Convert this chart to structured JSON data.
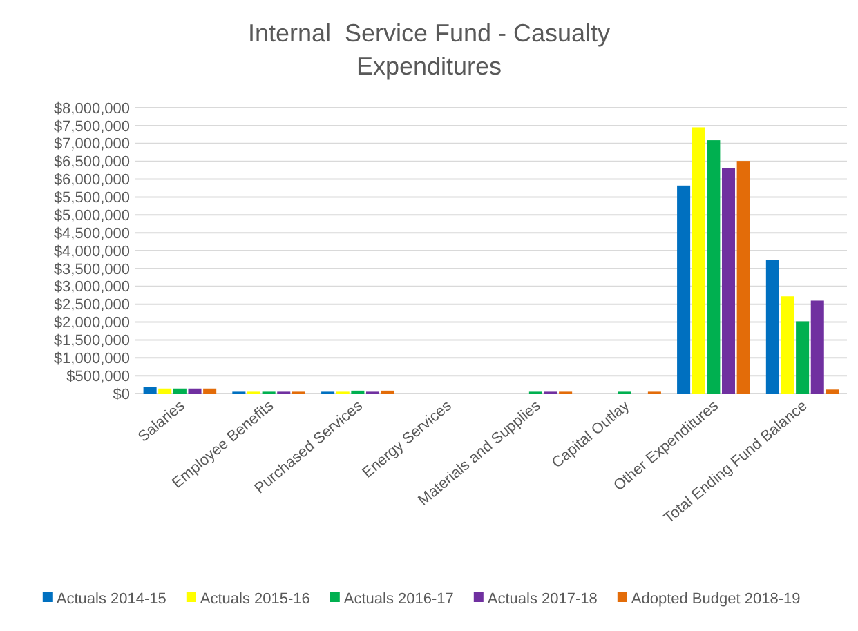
{
  "chart_data": {
    "type": "bar",
    "title": "Internal  Service Fund - Casualty Expenditures",
    "categories": [
      "Salaries",
      "Employee Benefits",
      "Purchased Services",
      "Energy Services",
      "Materials and Supplies",
      "Capital Outlay",
      "Other Expenditures",
      "Total Ending Fund Balance"
    ],
    "series": [
      {
        "name": "Actuals 2014-15",
        "color": "#0070c0",
        "values": [
          190000,
          50000,
          50000,
          0,
          0,
          0,
          5820000,
          3740000
        ]
      },
      {
        "name": "Actuals 2015-16",
        "color": "#ffff00",
        "values": [
          140000,
          50000,
          50000,
          0,
          0,
          0,
          7450000,
          2720000
        ]
      },
      {
        "name": "Actuals 2016-17",
        "color": "#00b050",
        "values": [
          140000,
          50000,
          80000,
          0,
          50000,
          50000,
          7090000,
          2020000
        ]
      },
      {
        "name": "Actuals 2017-18",
        "color": "#7030a0",
        "values": [
          140000,
          50000,
          50000,
          0,
          50000,
          0,
          6310000,
          2600000
        ]
      },
      {
        "name": "Adopted Budget 2018-19",
        "color": "#e36c09",
        "values": [
          140000,
          50000,
          80000,
          0,
          50000,
          50000,
          6510000,
          110000
        ]
      }
    ],
    "ylim": [
      0,
      8000000
    ],
    "yticks": [
      {
        "value": 0,
        "label": "$0"
      },
      {
        "value": 500000,
        "label": "$500,000"
      },
      {
        "value": 1000000,
        "label": "$1,000,000"
      },
      {
        "value": 1500000,
        "label": "$1,500,000"
      },
      {
        "value": 2000000,
        "label": "$2,000,000"
      },
      {
        "value": 2500000,
        "label": "$2,500,000"
      },
      {
        "value": 3000000,
        "label": "$3,000,000"
      },
      {
        "value": 3500000,
        "label": "$3,500,000"
      },
      {
        "value": 4000000,
        "label": "$4,000,000"
      },
      {
        "value": 4500000,
        "label": "$4,500,000"
      },
      {
        "value": 5000000,
        "label": "$5,000,000"
      },
      {
        "value": 5500000,
        "label": "$5,500,000"
      },
      {
        "value": 6000000,
        "label": "$6,000,000"
      },
      {
        "value": 6500000,
        "label": "$6,500,000"
      },
      {
        "value": 7000000,
        "label": "$7,000,000"
      },
      {
        "value": 7500000,
        "label": "$7,500,000"
      },
      {
        "value": 8000000,
        "label": "$8,000,000"
      }
    ],
    "grid": "y",
    "legend": "bottom"
  }
}
